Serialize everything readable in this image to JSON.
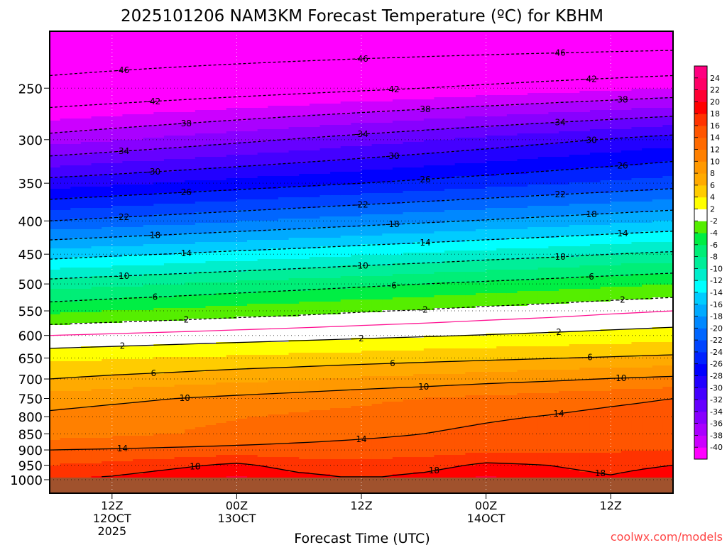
{
  "chart_data": {
    "type": "heatmap",
    "title": "2025101206 NAM3KM Forecast Temperature (ºC) for KBHM",
    "xlabel": "Forecast Time (UTC)",
    "ylabel": "",
    "credit": "coolwx.com/models",
    "x_hours": [
      0,
      6,
      12,
      18,
      24,
      30,
      36,
      42,
      48,
      54,
      60
    ],
    "xlim": [
      0,
      60
    ],
    "x_ticks": [
      {
        "hour": 6,
        "lines": [
          "12Z",
          "12OCT",
          "2025"
        ]
      },
      {
        "hour": 18,
        "lines": [
          "00Z",
          "13OCT"
        ]
      },
      {
        "hour": 30,
        "lines": [
          "12Z"
        ]
      },
      {
        "hour": 42,
        "lines": [
          "00Z",
          "14OCT"
        ]
      },
      {
        "hour": 54,
        "lines": [
          "12Z"
        ]
      }
    ],
    "pressure_levels": [
      200,
      250,
      300,
      350,
      400,
      450,
      500,
      550,
      600,
      650,
      700,
      750,
      800,
      850,
      900,
      950,
      1000
    ],
    "y_ticks": [
      "250",
      "300",
      "350",
      "400",
      "450",
      "500",
      "550",
      "600",
      "650",
      "700",
      "750",
      "800",
      "850",
      "900",
      "950",
      "1000"
    ],
    "ylim_hpa": [
      1049,
      204
    ],
    "temperature_c": [
      [
        -50,
        -50,
        -50,
        -50,
        -50,
        -50,
        -50,
        -50,
        -50,
        -50,
        -50
      ],
      [
        -45,
        -44.5,
        -44,
        -43.5,
        -43,
        -42.5,
        -42,
        -41.5,
        -41,
        -40.5,
        -40
      ],
      [
        -37,
        -36.2,
        -35.4,
        -34.6,
        -33.8,
        -33,
        -32.2,
        -31.4,
        -30.6,
        -29.8,
        -29
      ],
      [
        -29,
        -28.4,
        -27.8,
        -27.2,
        -26.6,
        -26,
        -25.4,
        -24.8,
        -24.2,
        -23.6,
        -23
      ],
      [
        -22,
        -21.4,
        -20.8,
        -20.2,
        -19.6,
        -19,
        -18.4,
        -17.8,
        -17.2,
        -16.6,
        -16
      ],
      [
        -15,
        -14.4,
        -13.9,
        -13.3,
        -12.8,
        -12.2,
        -11.7,
        -11.1,
        -10.6,
        -10,
        -9.5
      ],
      [
        -9,
        -8.5,
        -8,
        -7.5,
        -7,
        -6.5,
        -6,
        -5.5,
        -5,
        -4.5,
        -4
      ],
      [
        -4.5,
        -4,
        -3.6,
        -3.1,
        -2.7,
        -2.2,
        -1.8,
        -1.3,
        -0.9,
        -0.4,
        0
      ],
      [
        0,
        0.3,
        0.6,
        0.9,
        1.2,
        1.5,
        1.8,
        2.1,
        2.4,
        2.7,
        3
      ],
      [
        3.5,
        3.8,
        4.1,
        4.4,
        4.7,
        5,
        5.3,
        5.6,
        5.9,
        6.2,
        6.5
      ],
      [
        6,
        6.5,
        6.9,
        7.4,
        7.8,
        8.3,
        8.7,
        9.2,
        9.6,
        10.1,
        10.5
      ],
      [
        9,
        9.5,
        10,
        10.5,
        11,
        11.5,
        12,
        12.5,
        13,
        13.5,
        14
      ],
      [
        10.5,
        11,
        11.4,
        11.9,
        12.3,
        12.8,
        13.2,
        13.7,
        14.1,
        14.6,
        15
      ],
      [
        11,
        11.5,
        12,
        12.5,
        13,
        13.5,
        14,
        14.5,
        15,
        15.5,
        16
      ],
      [
        14,
        14.2,
        14.4,
        14.6,
        14.8,
        15,
        15.2,
        15.4,
        15.6,
        15.8,
        16
      ],
      [
        16,
        16.5,
        17.5,
        18.5,
        17,
        16.5,
        17,
        18.5,
        18,
        17,
        18
      ],
      [
        18,
        18.5,
        19.5,
        20.5,
        19,
        18,
        19,
        20.5,
        19.5,
        18.5,
        20
      ]
    ],
    "contour_levels": [
      -46,
      -42,
      -38,
      -34,
      -30,
      -26,
      -22,
      -18,
      -14,
      -10,
      -6,
      -2,
      2,
      6,
      10,
      14,
      18
    ],
    "freezing_contour": 0,
    "colorbar": {
      "bounds": [
        -40,
        -38,
        -36,
        -34,
        -32,
        -30,
        -28,
        -26,
        -24,
        -22,
        -20,
        -18,
        -16,
        -14,
        -12,
        -10,
        -8,
        -6,
        -4,
        -2,
        2,
        4,
        6,
        8,
        10,
        12,
        14,
        16,
        18,
        20,
        22,
        24
      ],
      "labels": [
        "24",
        "22",
        "20",
        "18",
        "16",
        "14",
        "12",
        "10",
        "8",
        "6",
        "4",
        "2",
        "-2",
        "-4",
        "-6",
        "-8",
        "-10",
        "-12",
        "-14",
        "-16",
        "-18",
        "-20",
        "-22",
        "-24",
        "-26",
        "-28",
        "-30",
        "-32",
        "-34",
        "-36",
        "-38",
        "-40"
      ],
      "colors": [
        "#ff00ff",
        "#cc00ff",
        "#aa00ff",
        "#8800ff",
        "#6600ff",
        "#4400ff",
        "#2200ff",
        "#0000ff",
        "#0022ff",
        "#0044ff",
        "#0066ff",
        "#0088ff",
        "#00aaff",
        "#00ccff",
        "#00ffff",
        "#00eecc",
        "#00ee99",
        "#00ee77",
        "#00ee44",
        "#55ee00",
        "#ffffff",
        "#ffff00",
        "#ffcc00",
        "#ffaa00",
        "#ff9900",
        "#ff8000",
        "#ff6a00",
        "#ff5500",
        "#ff3300",
        "#ff0000",
        "#ff0033",
        "#ff0066",
        "#ff0080"
      ]
    },
    "ground_color": "#a0522d",
    "freezing_color": "#ff1493"
  }
}
